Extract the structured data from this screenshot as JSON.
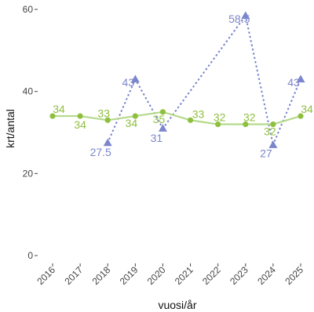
{
  "chart_data": {
    "type": "line",
    "xlabel": "vuosi/år",
    "ylabel": "krt/antal",
    "ylim": [
      0,
      60
    ],
    "yticks": [
      0,
      20,
      40,
      60
    ],
    "categories": [
      "2016",
      "2017",
      "2018",
      "2019",
      "2020",
      "2021",
      "2022",
      "2023",
      "2024",
      "2025"
    ],
    "grid": false,
    "series": [
      {
        "color": "#8fbf3f",
        "line_color": "#b5d98b",
        "style": "solid",
        "marker": "circle",
        "values": [
          34,
          34,
          33,
          34,
          35,
          33,
          32,
          32,
          32,
          34
        ],
        "labels": [
          "34",
          "34",
          "33",
          "34",
          "35",
          "33",
          "32",
          "32",
          "32",
          "34"
        ]
      },
      {
        "color": "#7b86cc",
        "style": "dotted",
        "marker": "triangle",
        "values": [
          null,
          null,
          27.5,
          43,
          31,
          null,
          null,
          58.5,
          27,
          43
        ],
        "labels": [
          null,
          null,
          "27.5",
          "43",
          "31",
          null,
          null,
          "58.5",
          "27",
          "43"
        ]
      }
    ]
  }
}
